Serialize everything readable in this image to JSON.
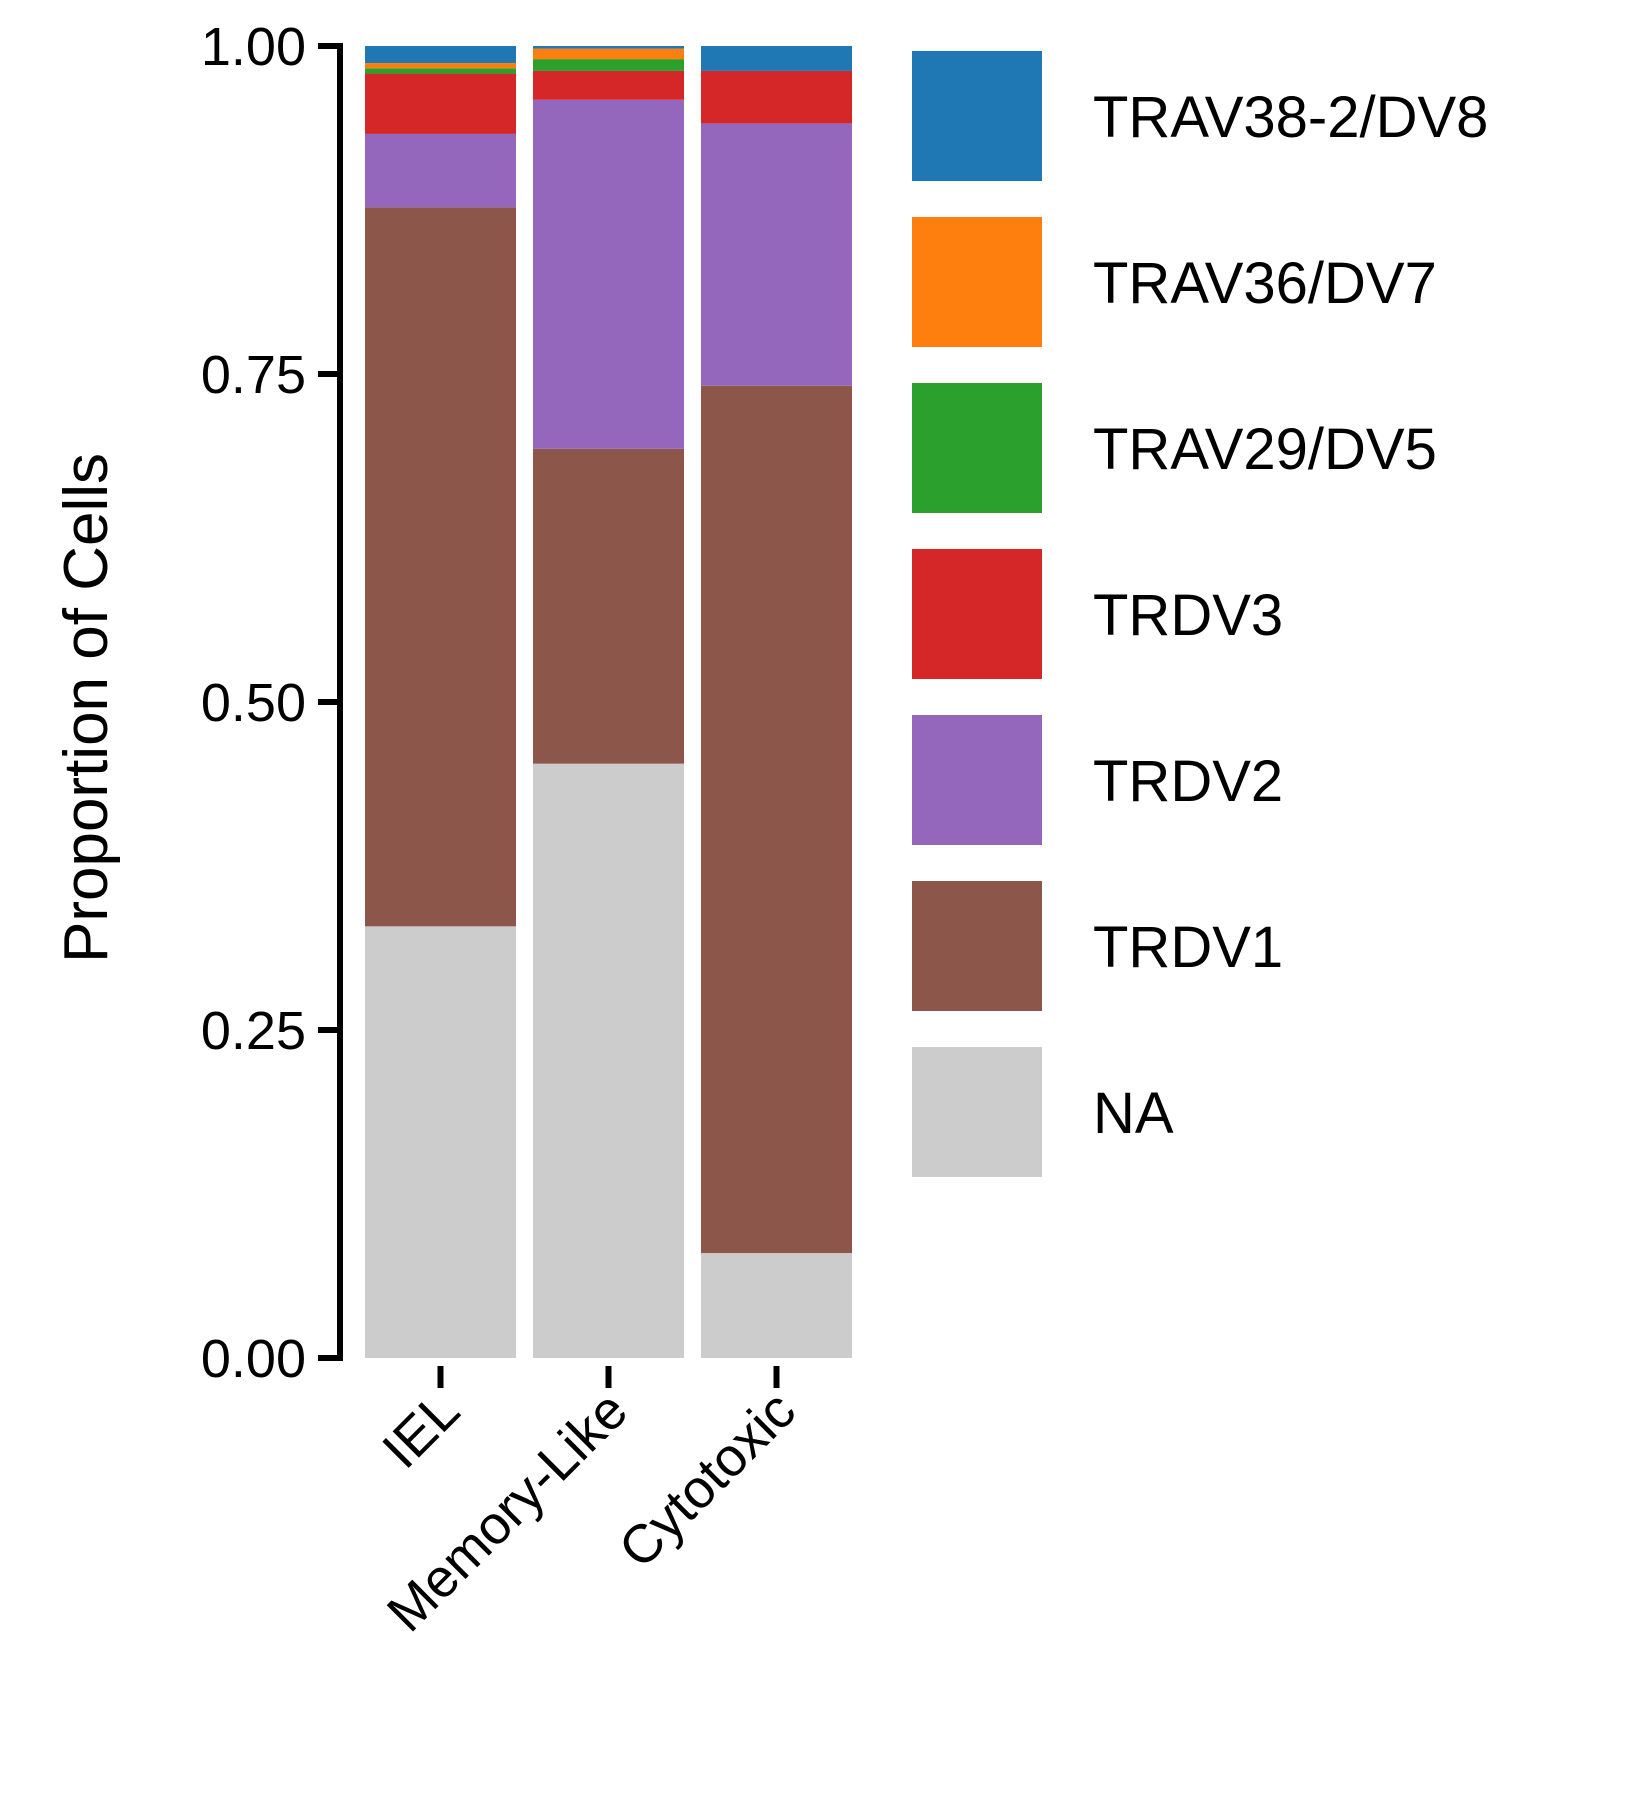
{
  "chart_data": {
    "type": "bar",
    "stacked": true,
    "ylabel": "Proportion of Cells",
    "xlabel": "",
    "ylim": [
      0,
      1
    ],
    "yticks": [
      "0.00",
      "0.25",
      "0.50",
      "0.75",
      "1.00"
    ],
    "categories": [
      "IEL",
      "Memory-Like",
      "Cytotoxic"
    ],
    "legend_position": "right",
    "series": [
      {
        "name": "NA",
        "color": "#CCCCCC",
        "values": [
          0.329,
          0.453,
          0.08
        ]
      },
      {
        "name": "TRDV1",
        "color": "#8C564B",
        "values": [
          0.548,
          0.24,
          0.661
        ]
      },
      {
        "name": "TRDV2",
        "color": "#9467BD",
        "values": [
          0.056,
          0.266,
          0.2
        ]
      },
      {
        "name": "TRDV3",
        "color": "#D62728",
        "values": [
          0.046,
          0.022,
          0.04
        ]
      },
      {
        "name": "TRAV29/DV5",
        "color": "#2CA02C",
        "values": [
          0.004,
          0.009,
          0.0
        ]
      },
      {
        "name": "TRAV36/DV7",
        "color": "#FF7F0E",
        "values": [
          0.004,
          0.008,
          0.0
        ]
      },
      {
        "name": "TRAV38-2/DV8",
        "color": "#1F77B4",
        "values": [
          0.013,
          0.002,
          0.019
        ]
      }
    ]
  }
}
